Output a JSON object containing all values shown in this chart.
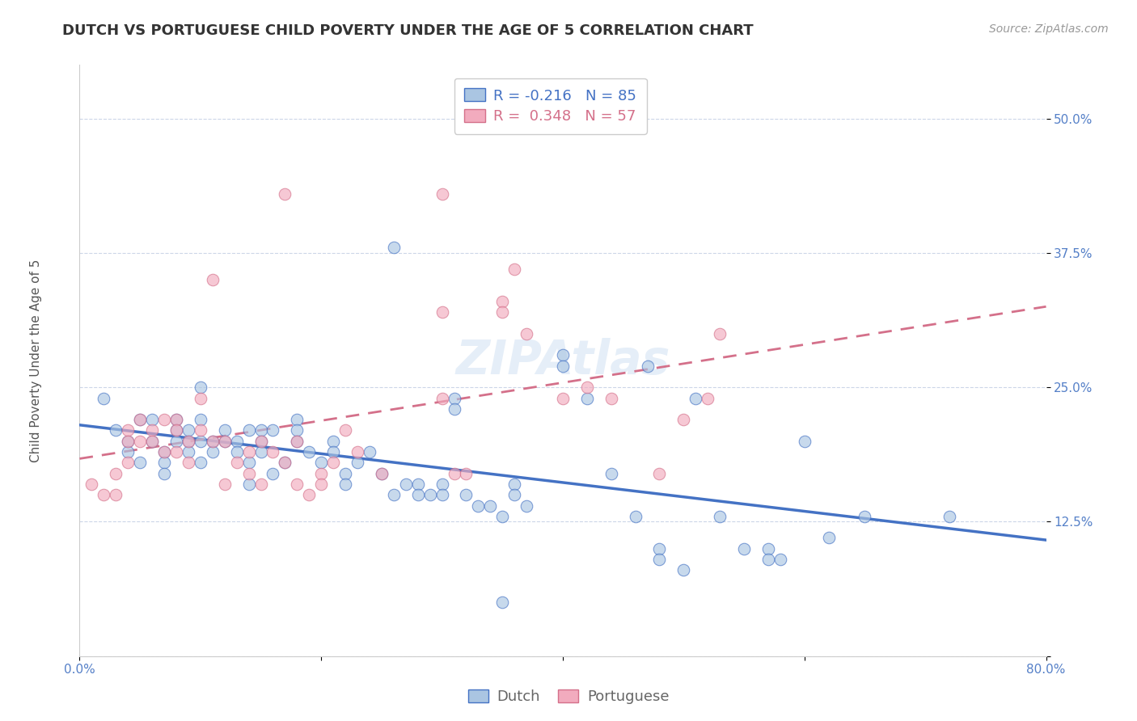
{
  "title": "DUTCH VS PORTUGUESE CHILD POVERTY UNDER THE AGE OF 5 CORRELATION CHART",
  "source": "Source: ZipAtlas.com",
  "ylabel": "Child Poverty Under the Age of 5",
  "xlim": [
    0.0,
    0.8
  ],
  "ylim": [
    0.0,
    0.55
  ],
  "yticks": [
    0.0,
    0.125,
    0.25,
    0.375,
    0.5
  ],
  "ytick_labels": [
    "",
    "12.5%",
    "25.0%",
    "37.5%",
    "50.0%"
  ],
  "xtick_positions": [
    0.0,
    0.2,
    0.4,
    0.6,
    0.8
  ],
  "xtick_labels": [
    "0.0%",
    "",
    "",
    "",
    "80.0%"
  ],
  "dutch_color": "#aac5e2",
  "portuguese_color": "#f2abbe",
  "dutch_line_color": "#4472c4",
  "portuguese_line_color": "#d4708a",
  "R_dutch": -0.216,
  "N_dutch": 85,
  "R_portuguese": 0.348,
  "N_portuguese": 57,
  "watermark": "ZIPAtlas",
  "background_color": "#ffffff",
  "grid_color": "#ccd6e8",
  "dutch_scatter": [
    [
      0.02,
      0.24
    ],
    [
      0.03,
      0.21
    ],
    [
      0.04,
      0.2
    ],
    [
      0.04,
      0.19
    ],
    [
      0.05,
      0.22
    ],
    [
      0.05,
      0.18
    ],
    [
      0.06,
      0.22
    ],
    [
      0.06,
      0.2
    ],
    [
      0.07,
      0.19
    ],
    [
      0.07,
      0.18
    ],
    [
      0.07,
      0.17
    ],
    [
      0.08,
      0.22
    ],
    [
      0.08,
      0.21
    ],
    [
      0.08,
      0.2
    ],
    [
      0.09,
      0.21
    ],
    [
      0.09,
      0.2
    ],
    [
      0.09,
      0.19
    ],
    [
      0.1,
      0.25
    ],
    [
      0.1,
      0.22
    ],
    [
      0.1,
      0.2
    ],
    [
      0.1,
      0.18
    ],
    [
      0.11,
      0.2
    ],
    [
      0.11,
      0.19
    ],
    [
      0.12,
      0.21
    ],
    [
      0.12,
      0.2
    ],
    [
      0.13,
      0.2
    ],
    [
      0.13,
      0.19
    ],
    [
      0.14,
      0.21
    ],
    [
      0.14,
      0.18
    ],
    [
      0.14,
      0.16
    ],
    [
      0.15,
      0.21
    ],
    [
      0.15,
      0.2
    ],
    [
      0.15,
      0.19
    ],
    [
      0.16,
      0.21
    ],
    [
      0.16,
      0.17
    ],
    [
      0.17,
      0.18
    ],
    [
      0.18,
      0.22
    ],
    [
      0.18,
      0.21
    ],
    [
      0.18,
      0.2
    ],
    [
      0.19,
      0.19
    ],
    [
      0.2,
      0.18
    ],
    [
      0.21,
      0.2
    ],
    [
      0.21,
      0.19
    ],
    [
      0.22,
      0.17
    ],
    [
      0.22,
      0.16
    ],
    [
      0.23,
      0.18
    ],
    [
      0.24,
      0.19
    ],
    [
      0.25,
      0.17
    ],
    [
      0.26,
      0.38
    ],
    [
      0.26,
      0.15
    ],
    [
      0.27,
      0.16
    ],
    [
      0.28,
      0.16
    ],
    [
      0.28,
      0.15
    ],
    [
      0.29,
      0.15
    ],
    [
      0.3,
      0.16
    ],
    [
      0.3,
      0.15
    ],
    [
      0.31,
      0.24
    ],
    [
      0.31,
      0.23
    ],
    [
      0.32,
      0.15
    ],
    [
      0.33,
      0.14
    ],
    [
      0.34,
      0.14
    ],
    [
      0.35,
      0.13
    ],
    [
      0.35,
      0.05
    ],
    [
      0.36,
      0.16
    ],
    [
      0.36,
      0.15
    ],
    [
      0.37,
      0.14
    ],
    [
      0.4,
      0.28
    ],
    [
      0.4,
      0.27
    ],
    [
      0.42,
      0.24
    ],
    [
      0.44,
      0.17
    ],
    [
      0.46,
      0.13
    ],
    [
      0.47,
      0.27
    ],
    [
      0.48,
      0.1
    ],
    [
      0.48,
      0.09
    ],
    [
      0.5,
      0.08
    ],
    [
      0.51,
      0.24
    ],
    [
      0.53,
      0.13
    ],
    [
      0.55,
      0.1
    ],
    [
      0.57,
      0.1
    ],
    [
      0.57,
      0.09
    ],
    [
      0.58,
      0.09
    ],
    [
      0.6,
      0.2
    ],
    [
      0.62,
      0.11
    ],
    [
      0.65,
      0.13
    ],
    [
      0.72,
      0.13
    ]
  ],
  "portuguese_scatter": [
    [
      0.01,
      0.16
    ],
    [
      0.02,
      0.15
    ],
    [
      0.03,
      0.17
    ],
    [
      0.03,
      0.15
    ],
    [
      0.04,
      0.21
    ],
    [
      0.04,
      0.2
    ],
    [
      0.04,
      0.18
    ],
    [
      0.05,
      0.22
    ],
    [
      0.05,
      0.2
    ],
    [
      0.06,
      0.21
    ],
    [
      0.06,
      0.2
    ],
    [
      0.07,
      0.22
    ],
    [
      0.07,
      0.19
    ],
    [
      0.08,
      0.22
    ],
    [
      0.08,
      0.21
    ],
    [
      0.08,
      0.19
    ],
    [
      0.09,
      0.2
    ],
    [
      0.09,
      0.18
    ],
    [
      0.1,
      0.24
    ],
    [
      0.1,
      0.21
    ],
    [
      0.11,
      0.35
    ],
    [
      0.11,
      0.2
    ],
    [
      0.12,
      0.2
    ],
    [
      0.12,
      0.16
    ],
    [
      0.13,
      0.18
    ],
    [
      0.14,
      0.19
    ],
    [
      0.14,
      0.17
    ],
    [
      0.15,
      0.2
    ],
    [
      0.15,
      0.16
    ],
    [
      0.16,
      0.19
    ],
    [
      0.17,
      0.43
    ],
    [
      0.17,
      0.18
    ],
    [
      0.18,
      0.2
    ],
    [
      0.18,
      0.16
    ],
    [
      0.19,
      0.15
    ],
    [
      0.2,
      0.17
    ],
    [
      0.2,
      0.16
    ],
    [
      0.21,
      0.18
    ],
    [
      0.22,
      0.21
    ],
    [
      0.23,
      0.19
    ],
    [
      0.25,
      0.17
    ],
    [
      0.3,
      0.43
    ],
    [
      0.3,
      0.32
    ],
    [
      0.3,
      0.24
    ],
    [
      0.31,
      0.17
    ],
    [
      0.32,
      0.17
    ],
    [
      0.35,
      0.33
    ],
    [
      0.35,
      0.32
    ],
    [
      0.36,
      0.36
    ],
    [
      0.37,
      0.3
    ],
    [
      0.4,
      0.24
    ],
    [
      0.42,
      0.25
    ],
    [
      0.44,
      0.24
    ],
    [
      0.48,
      0.17
    ],
    [
      0.5,
      0.22
    ],
    [
      0.52,
      0.24
    ],
    [
      0.53,
      0.3
    ]
  ],
  "title_fontsize": 13,
  "axis_label_fontsize": 11,
  "tick_fontsize": 11,
  "legend_fontsize": 13,
  "source_fontsize": 10,
  "watermark_fontsize": 42,
  "marker_size": 110,
  "marker_alpha": 0.65
}
